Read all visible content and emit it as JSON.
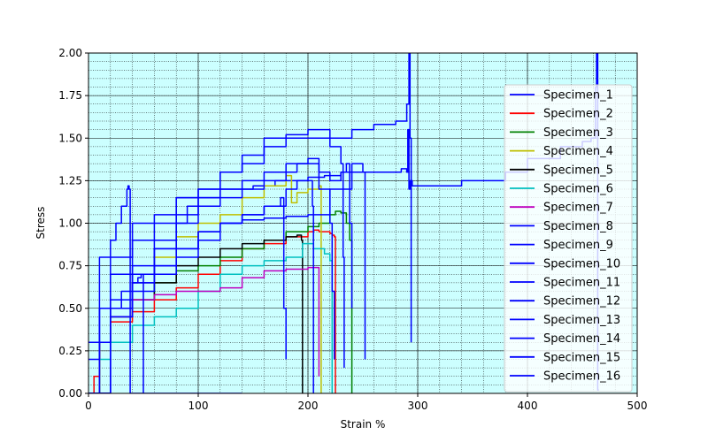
{
  "chart_data": {
    "type": "line",
    "xlabel": "Strain %",
    "ylabel": "Stress",
    "xlim": [
      0,
      500
    ],
    "ylim": [
      0,
      2.0
    ],
    "xticks": [
      0,
      100,
      200,
      300,
      400,
      500
    ],
    "yticks": [
      0.0,
      0.25,
      0.5,
      0.75,
      1.0,
      1.25,
      1.5,
      1.75,
      2.0
    ],
    "xtick_labels": [
      "0",
      "100",
      "200",
      "300",
      "400",
      "500"
    ],
    "ytick_labels": [
      "0.00",
      "0.25",
      "0.50",
      "0.75",
      "1.00",
      "1.25",
      "1.50",
      "1.75",
      "2.00"
    ],
    "grid": "major and minor",
    "background_color": "#ccffff",
    "legend_position": "right",
    "series": [
      {
        "name": "Specimen_1",
        "color": "#0000ff",
        "x": [
          0,
          10,
          40,
          80,
          120,
          150,
          170,
          185,
          200,
          215,
          230,
          250,
          270,
          285,
          290,
          291,
          292,
          293,
          295,
          310,
          340,
          380,
          400,
          430,
          450,
          458,
          462,
          463,
          464,
          465
        ],
        "y": [
          0,
          0.8,
          1.0,
          1.15,
          1.2,
          1.22,
          1.25,
          1.25,
          1.27,
          1.28,
          1.3,
          1.3,
          1.3,
          1.32,
          1.3,
          1.55,
          1.2,
          1.25,
          1.22,
          1.22,
          1.25,
          1.3,
          1.38,
          1.45,
          1.48,
          1.5,
          1.8,
          2.0,
          0.02,
          0.02
        ]
      },
      {
        "name": "Specimen_2",
        "color": "#ff0000",
        "x": [
          0,
          5,
          10,
          20,
          40,
          60,
          80,
          100,
          120,
          140,
          160,
          180,
          200,
          205,
          210,
          215,
          220,
          222,
          224,
          225,
          225
        ],
        "y": [
          0,
          0.1,
          0.3,
          0.42,
          0.48,
          0.55,
          0.62,
          0.7,
          0.78,
          0.85,
          0.88,
          0.92,
          0.95,
          0.96,
          0.95,
          0.95,
          0.94,
          0.93,
          0.92,
          0.5,
          0.0
        ]
      },
      {
        "name": "Specimen_3",
        "color": "#008000",
        "x": [
          0,
          10,
          20,
          40,
          60,
          80,
          100,
          120,
          140,
          160,
          180,
          200,
          210,
          220,
          225,
          230,
          235,
          238,
          240,
          240
        ],
        "y": [
          0,
          0.3,
          0.45,
          0.55,
          0.65,
          0.72,
          0.75,
          0.8,
          0.85,
          0.9,
          0.95,
          0.98,
          1.0,
          1.05,
          1.07,
          1.06,
          1.0,
          0.9,
          0.2,
          0.0
        ]
      },
      {
        "name": "Specimen_4",
        "color": "#bfbf00",
        "x": [
          0,
          10,
          20,
          40,
          60,
          80,
          100,
          120,
          140,
          160,
          180,
          185,
          190,
          200,
          210,
          212
        ],
        "y": [
          0,
          0.3,
          0.5,
          0.65,
          0.8,
          0.92,
          1.0,
          1.05,
          1.15,
          1.22,
          1.28,
          1.12,
          1.18,
          1.2,
          1.22,
          0.0
        ]
      },
      {
        "name": "Specimen_5",
        "color": "#000000",
        "x": [
          0,
          10,
          20,
          40,
          60,
          80,
          100,
          120,
          140,
          160,
          180,
          190,
          194,
          195
        ],
        "y": [
          0,
          0.3,
          0.45,
          0.55,
          0.65,
          0.75,
          0.8,
          0.85,
          0.88,
          0.9,
          0.92,
          0.93,
          0.9,
          0.0
        ]
      },
      {
        "name": "Specimen_6",
        "color": "#00bfbf",
        "x": [
          0,
          10,
          20,
          40,
          60,
          80,
          100,
          120,
          140,
          160,
          180,
          195,
          205,
          215,
          220,
          222
        ],
        "y": [
          0,
          0.2,
          0.3,
          0.4,
          0.45,
          0.5,
          0.6,
          0.7,
          0.75,
          0.78,
          0.8,
          0.88,
          0.85,
          0.82,
          0.78,
          0.0
        ]
      },
      {
        "name": "Specimen_7",
        "color": "#bf00bf",
        "x": [
          0,
          10,
          20,
          40,
          60,
          80,
          100,
          120,
          140,
          160,
          180,
          200,
          208,
          210,
          210
        ],
        "y": [
          0,
          0.3,
          0.45,
          0.55,
          0.58,
          0.6,
          0.6,
          0.62,
          0.68,
          0.72,
          0.73,
          0.74,
          0.74,
          0.74,
          0.1
        ]
      },
      {
        "name": "Specimen_8",
        "color": "#0000ff",
        "x": [
          0,
          10,
          20,
          25,
          30,
          35,
          36,
          37,
          38,
          38,
          40,
          60,
          100,
          140
        ],
        "y": [
          0.2,
          0.5,
          0.9,
          1.0,
          1.1,
          1.2,
          1.22,
          1.2,
          0.5,
          0.0,
          0.0,
          0.0,
          0.0,
          0.0
        ]
      },
      {
        "name": "Specimen_9",
        "color": "#0000ff",
        "x": [
          0,
          10,
          20,
          30,
          40,
          45,
          48,
          50,
          50
        ],
        "y": [
          0,
          0.3,
          0.5,
          0.6,
          0.65,
          0.68,
          0.7,
          0.7,
          0.0
        ]
      },
      {
        "name": "Specimen_10",
        "color": "#0000ff",
        "x": [
          0,
          20,
          40,
          60,
          80,
          100,
          120,
          140,
          160,
          175,
          178,
          180
        ],
        "y": [
          0,
          0.5,
          0.65,
          0.75,
          0.85,
          0.95,
          1.0,
          1.05,
          1.1,
          1.15,
          0.5,
          0.2
        ]
      },
      {
        "name": "Specimen_11",
        "color": "#0000ff",
        "x": [
          0,
          20,
          40,
          60,
          80,
          100,
          120,
          140,
          160,
          180,
          190,
          200,
          210,
          220,
          222,
          224
        ],
        "y": [
          0,
          0.5,
          0.7,
          0.85,
          1.0,
          1.1,
          1.15,
          1.2,
          1.25,
          1.3,
          1.35,
          1.35,
          1.2,
          1.0,
          0.6,
          0.2
        ]
      },
      {
        "name": "Specimen_12",
        "color": "#0000ff",
        "x": [
          0,
          20,
          40,
          60,
          80,
          100,
          120,
          140,
          160,
          180,
          190,
          200,
          204,
          205
        ],
        "y": [
          0,
          0.45,
          0.6,
          0.7,
          0.8,
          0.9,
          1.0,
          1.05,
          1.1,
          1.2,
          1.25,
          1.25,
          1.1,
          0.0
        ]
      },
      {
        "name": "Specimen_13",
        "color": "#0000ff",
        "x": [
          0,
          20,
          40,
          60,
          80,
          90,
          100,
          120,
          140,
          160,
          180,
          200,
          220,
          230,
          232,
          233
        ],
        "y": [
          0,
          0.5,
          0.7,
          0.85,
          1.0,
          1.1,
          1.2,
          1.3,
          1.35,
          1.45,
          1.5,
          1.5,
          1.45,
          1.35,
          0.8,
          0.15
        ]
      },
      {
        "name": "Specimen_14",
        "color": "#0000ff",
        "x": [
          0,
          20,
          40,
          60,
          80,
          100,
          120,
          140,
          160,
          180,
          200,
          220,
          240,
          250,
          252
        ],
        "y": [
          0,
          0.5,
          0.65,
          0.75,
          0.85,
          0.95,
          1.0,
          1.02,
          1.03,
          1.04,
          1.05,
          1.2,
          1.35,
          1.3,
          0.2
        ]
      },
      {
        "name": "Specimen_15",
        "color": "#0000ff",
        "x": [
          0,
          20,
          40,
          60,
          80,
          100,
          120,
          140,
          160,
          180,
          200,
          210,
          220,
          230,
          235,
          238,
          240
        ],
        "y": [
          0,
          0.55,
          0.75,
          0.9,
          1.05,
          1.15,
          1.2,
          1.25,
          1.3,
          1.35,
          1.38,
          1.3,
          1.25,
          1.3,
          1.35,
          1.0,
          0.5
        ]
      },
      {
        "name": "Specimen_16",
        "color": "#0000ff",
        "x": [
          0,
          10,
          20,
          40,
          60,
          80,
          100,
          120,
          140,
          160,
          180,
          200,
          220,
          240,
          260,
          280,
          290,
          292,
          293,
          294
        ],
        "y": [
          0.3,
          0.5,
          0.7,
          0.9,
          1.05,
          1.15,
          1.2,
          1.3,
          1.4,
          1.5,
          1.52,
          1.55,
          1.5,
          1.55,
          1.58,
          1.6,
          1.7,
          2.0,
          1.5,
          0.3
        ]
      }
    ]
  }
}
